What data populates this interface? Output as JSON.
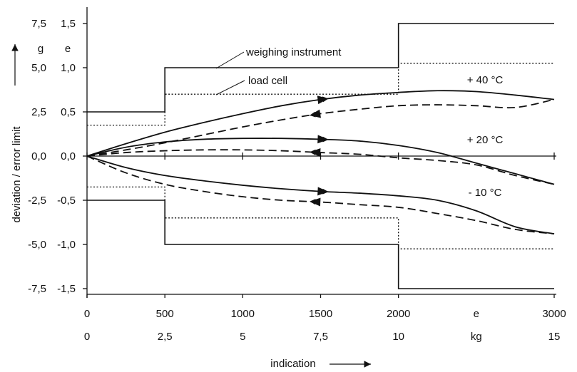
{
  "chart_data": {
    "type": "line",
    "xlabel": "indication",
    "ylabel": "deviation / error limit",
    "xlim": [
      0,
      3000
    ],
    "ylim_e": [
      -1.5,
      1.5
    ],
    "x_unit_e": "e",
    "x_unit_kg": "kg",
    "y_unit_g": "g",
    "y_unit_e": "e",
    "x_ticks_e": [
      "0",
      "500",
      "1000",
      "1500",
      "2000",
      "3000"
    ],
    "x_ticks_e_values": [
      0,
      500,
      1000,
      1500,
      2000,
      3000
    ],
    "x_ticks_kg": [
      "0",
      "2,5",
      "5",
      "7,5",
      "10",
      "15"
    ],
    "y_ticks_e": [
      "1,5",
      "1,0",
      "0,5",
      "0,0",
      "-0,5",
      "-1,0",
      "-1,5"
    ],
    "y_ticks_g": [
      "7,5",
      "5,0",
      "2,5",
      "0,0",
      "-2,5",
      "-5,0",
      "-7,5"
    ],
    "y_ticks_values": [
      1.5,
      1.0,
      0.5,
      0.0,
      -0.5,
      -1.0,
      -1.5
    ],
    "limits": [
      {
        "name": "weighing instrument",
        "style": "solid",
        "points": [
          [
            0,
            0.5
          ],
          [
            500,
            0.5
          ],
          [
            500,
            1.0
          ],
          [
            2000,
            1.0
          ],
          [
            2000,
            1.5
          ],
          [
            3000,
            1.5
          ]
        ]
      },
      {
        "name": "weighing instrument",
        "style": "solid",
        "points": [
          [
            0,
            -0.5
          ],
          [
            500,
            -0.5
          ],
          [
            500,
            -1.0
          ],
          [
            2000,
            -1.0
          ],
          [
            2000,
            -1.5
          ],
          [
            3000,
            -1.5
          ]
        ]
      },
      {
        "name": "load cell",
        "style": "dotted",
        "points": [
          [
            0,
            0.35
          ],
          [
            500,
            0.35
          ],
          [
            500,
            0.7
          ],
          [
            2000,
            0.7
          ],
          [
            2000,
            1.05
          ],
          [
            3000,
            1.05
          ]
        ]
      },
      {
        "name": "load cell",
        "style": "dotted",
        "points": [
          [
            0,
            -0.35
          ],
          [
            500,
            -0.35
          ],
          [
            500,
            -0.7
          ],
          [
            2000,
            -0.7
          ],
          [
            2000,
            -1.05
          ],
          [
            3000,
            -1.05
          ]
        ]
      }
    ],
    "series": [
      {
        "name": "+ 40 °C",
        "direction": "increasing",
        "style": "solid",
        "x": [
          0,
          250,
          500,
          750,
          1000,
          1250,
          1500,
          1750,
          2000,
          2250,
          2500,
          2750,
          3000
        ],
        "y": [
          0.0,
          0.14,
          0.27,
          0.38,
          0.48,
          0.57,
          0.64,
          0.69,
          0.72,
          0.74,
          0.73,
          0.69,
          0.64
        ]
      },
      {
        "name": "+ 40 °C",
        "direction": "decreasing",
        "style": "dashed",
        "x": [
          0,
          250,
          500,
          750,
          1000,
          1250,
          1500,
          1750,
          2000,
          2250,
          2500,
          2750,
          3000
        ],
        "y": [
          0.0,
          0.07,
          0.15,
          0.24,
          0.33,
          0.41,
          0.48,
          0.53,
          0.57,
          0.58,
          0.57,
          0.55,
          0.64
        ]
      },
      {
        "name": "+ 20 °C",
        "direction": "increasing",
        "style": "solid",
        "x": [
          0,
          250,
          500,
          750,
          1000,
          1250,
          1500,
          1750,
          2000,
          2250,
          2500,
          2750,
          3000
        ],
        "y": [
          0.0,
          0.1,
          0.16,
          0.19,
          0.2,
          0.2,
          0.19,
          0.17,
          0.12,
          0.04,
          -0.08,
          -0.2,
          -0.32
        ]
      },
      {
        "name": "+ 20 °C",
        "direction": "decreasing",
        "style": "dashed",
        "x": [
          0,
          250,
          500,
          750,
          1000,
          1250,
          1500,
          1750,
          2000,
          2250,
          2500,
          2750,
          3000
        ],
        "y": [
          0.0,
          0.04,
          0.06,
          0.07,
          0.07,
          0.06,
          0.04,
          0.02,
          -0.02,
          -0.05,
          -0.1,
          -0.22,
          -0.32
        ]
      },
      {
        "name": "- 10 °C",
        "direction": "increasing",
        "style": "solid",
        "x": [
          0,
          250,
          500,
          750,
          1000,
          1250,
          1500,
          1750,
          2000,
          2250,
          2500,
          2750,
          3000
        ],
        "y": [
          0.0,
          -0.13,
          -0.22,
          -0.28,
          -0.33,
          -0.37,
          -0.4,
          -0.42,
          -0.45,
          -0.5,
          -0.62,
          -0.8,
          -0.88
        ]
      },
      {
        "name": "- 10 °C",
        "direction": "decreasing",
        "style": "dashed",
        "x": [
          0,
          250,
          500,
          750,
          1000,
          1250,
          1500,
          1750,
          2000,
          2250,
          2500,
          2750,
          3000
        ],
        "y": [
          0.0,
          -0.19,
          -0.32,
          -0.4,
          -0.46,
          -0.5,
          -0.52,
          -0.55,
          -0.58,
          -0.65,
          -0.73,
          -0.83,
          -0.88
        ]
      }
    ],
    "annotations": [
      {
        "text": "weighing instrument"
      },
      {
        "text": "load cell"
      }
    ],
    "grid": false
  }
}
